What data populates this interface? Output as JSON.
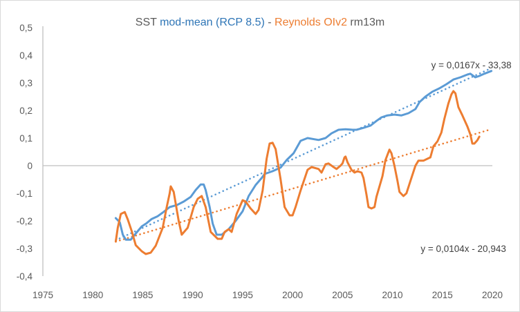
{
  "chart_data": {
    "type": "line",
    "title": {
      "segments": [
        {
          "text": "SST ",
          "color": "#595959"
        },
        {
          "text": "mod-mean (RCP 8.5)",
          "color": "#2E75B6"
        },
        {
          "text": " - ",
          "color": "#595959"
        },
        {
          "text": "Reynolds OIv2",
          "color": "#ED7D31"
        },
        {
          "text": " rm13m",
          "color": "#595959"
        }
      ]
    },
    "xlabel": "",
    "ylabel": "",
    "xlim": [
      1975,
      2020
    ],
    "ylim": [
      -0.4,
      0.5
    ],
    "x_ticks": [
      1975,
      1980,
      1985,
      1990,
      1995,
      2000,
      2005,
      2010,
      2015,
      2020
    ],
    "x_tick_labels": [
      "1975",
      "1980",
      "1985",
      "1990",
      "1995",
      "2000",
      "2005",
      "2010",
      "2015",
      "2020"
    ],
    "y_ticks": [
      0.5,
      0.4,
      0.3,
      0.2,
      0.1,
      0,
      -0.1,
      -0.2,
      -0.3,
      -0.4
    ],
    "y_tick_labels": [
      "0,5",
      "0,4",
      "0,3",
      "0,2",
      "0,1",
      "0",
      "-0,1",
      "-0,2",
      "-0,3",
      "-0,4"
    ],
    "grid": false,
    "legend": "none",
    "series": [
      {
        "name": "SST mod-mean (RCP 8.5)",
        "color": "#5B9BD5",
        "points": [
          [
            1982.3,
            -0.19
          ],
          [
            1982.7,
            -0.205
          ],
          [
            1983.0,
            -0.25
          ],
          [
            1983.3,
            -0.268
          ],
          [
            1983.8,
            -0.268
          ],
          [
            1984.2,
            -0.25
          ],
          [
            1984.9,
            -0.22
          ],
          [
            1985.4,
            -0.208
          ],
          [
            1985.9,
            -0.193
          ],
          [
            1986.5,
            -0.183
          ],
          [
            1987.0,
            -0.17
          ],
          [
            1987.7,
            -0.15
          ],
          [
            1988.4,
            -0.143
          ],
          [
            1989.1,
            -0.13
          ],
          [
            1989.8,
            -0.113
          ],
          [
            1990.3,
            -0.088
          ],
          [
            1990.8,
            -0.068
          ],
          [
            1991.1,
            -0.068
          ],
          [
            1991.3,
            -0.088
          ],
          [
            1991.7,
            -0.15
          ],
          [
            1992.0,
            -0.21
          ],
          [
            1992.4,
            -0.25
          ],
          [
            1992.9,
            -0.25
          ],
          [
            1993.6,
            -0.23
          ],
          [
            1994.3,
            -0.2
          ],
          [
            1995.0,
            -0.165
          ],
          [
            1995.6,
            -0.11
          ],
          [
            1996.3,
            -0.07
          ],
          [
            1996.9,
            -0.045
          ],
          [
            1997.2,
            -0.03
          ],
          [
            1998.0,
            -0.02
          ],
          [
            1998.8,
            -0.007
          ],
          [
            1999.4,
            0.02
          ],
          [
            2000.1,
            0.045
          ],
          [
            2000.8,
            0.09
          ],
          [
            2001.5,
            0.1
          ],
          [
            2002.6,
            0.093
          ],
          [
            2003.3,
            0.1
          ],
          [
            2003.9,
            0.117
          ],
          [
            2004.6,
            0.13
          ],
          [
            2005.3,
            0.132
          ],
          [
            2006.0,
            0.13
          ],
          [
            2006.4,
            0.13
          ],
          [
            2007.1,
            0.137
          ],
          [
            2007.8,
            0.145
          ],
          [
            2008.4,
            0.162
          ],
          [
            2008.9,
            0.175
          ],
          [
            2009.5,
            0.182
          ],
          [
            2010.2,
            0.185
          ],
          [
            2010.9,
            0.182
          ],
          [
            2011.6,
            0.19
          ],
          [
            2012.3,
            0.205
          ],
          [
            2012.7,
            0.23
          ],
          [
            2013.3,
            0.25
          ],
          [
            2014.0,
            0.268
          ],
          [
            2014.7,
            0.28
          ],
          [
            2015.4,
            0.295
          ],
          [
            2016.1,
            0.312
          ],
          [
            2016.8,
            0.32
          ],
          [
            2017.5,
            0.33
          ],
          [
            2017.8,
            0.333
          ],
          [
            2018.3,
            0.32
          ],
          [
            2018.7,
            0.325
          ],
          [
            2019.2,
            0.333
          ],
          [
            2019.9,
            0.343
          ]
        ],
        "trendline": {
          "equation": "y = 0,0167x - 33,38",
          "from": [
            1982.3,
            -0.27
          ],
          "to": [
            2019.7,
            0.35
          ]
        }
      },
      {
        "name": "Reynolds OIv2 rm13m",
        "color": "#ED7D31",
        "points": [
          [
            1982.3,
            -0.275
          ],
          [
            1982.5,
            -0.225
          ],
          [
            1982.8,
            -0.175
          ],
          [
            1983.2,
            -0.168
          ],
          [
            1983.5,
            -0.195
          ],
          [
            1983.9,
            -0.238
          ],
          [
            1984.3,
            -0.288
          ],
          [
            1984.9,
            -0.31
          ],
          [
            1985.3,
            -0.32
          ],
          [
            1985.8,
            -0.315
          ],
          [
            1986.3,
            -0.29
          ],
          [
            1987.0,
            -0.225
          ],
          [
            1987.4,
            -0.15
          ],
          [
            1987.7,
            -0.1
          ],
          [
            1987.8,
            -0.075
          ],
          [
            1988.1,
            -0.095
          ],
          [
            1988.6,
            -0.2
          ],
          [
            1988.9,
            -0.25
          ],
          [
            1989.5,
            -0.225
          ],
          [
            1990.1,
            -0.15
          ],
          [
            1990.5,
            -0.12
          ],
          [
            1990.9,
            -0.11
          ],
          [
            1991.3,
            -0.15
          ],
          [
            1991.8,
            -0.24
          ],
          [
            1992.5,
            -0.265
          ],
          [
            1992.9,
            -0.265
          ],
          [
            1993.2,
            -0.24
          ],
          [
            1993.6,
            -0.23
          ],
          [
            1993.9,
            -0.24
          ],
          [
            1994.4,
            -0.175
          ],
          [
            1995.0,
            -0.125
          ],
          [
            1995.3,
            -0.13
          ],
          [
            1995.8,
            -0.155
          ],
          [
            1996.3,
            -0.175
          ],
          [
            1996.6,
            -0.16
          ],
          [
            1997.0,
            -0.09
          ],
          [
            1997.4,
            0.025
          ],
          [
            1997.7,
            0.08
          ],
          [
            1998.0,
            0.083
          ],
          [
            1998.3,
            0.06
          ],
          [
            1998.8,
            -0.05
          ],
          [
            1999.2,
            -0.15
          ],
          [
            1999.7,
            -0.18
          ],
          [
            2000.0,
            -0.18
          ],
          [
            2000.3,
            -0.15
          ],
          [
            2000.8,
            -0.09
          ],
          [
            2001.5,
            -0.015
          ],
          [
            2001.9,
            -0.005
          ],
          [
            2002.6,
            -0.012
          ],
          [
            2002.9,
            -0.025
          ],
          [
            2003.3,
            0.005
          ],
          [
            2003.6,
            0.008
          ],
          [
            2004.1,
            -0.005
          ],
          [
            2004.4,
            -0.012
          ],
          [
            2004.8,
            0.0
          ],
          [
            2005.0,
            0.008
          ],
          [
            2005.2,
            0.03
          ],
          [
            2005.3,
            0.033
          ],
          [
            2005.5,
            0.012
          ],
          [
            2005.9,
            -0.015
          ],
          [
            2006.2,
            -0.025
          ],
          [
            2006.5,
            -0.02
          ],
          [
            2006.9,
            -0.025
          ],
          [
            2007.1,
            -0.045
          ],
          [
            2007.4,
            -0.105
          ],
          [
            2007.6,
            -0.15
          ],
          [
            2007.9,
            -0.155
          ],
          [
            2008.2,
            -0.15
          ],
          [
            2008.4,
            -0.113
          ],
          [
            2009.0,
            -0.038
          ],
          [
            2009.3,
            0.02
          ],
          [
            2009.7,
            0.058
          ],
          [
            2009.9,
            0.045
          ],
          [
            2010.2,
            0.0
          ],
          [
            2010.5,
            -0.055
          ],
          [
            2010.7,
            -0.095
          ],
          [
            2011.1,
            -0.11
          ],
          [
            2011.4,
            -0.1
          ],
          [
            2011.8,
            -0.055
          ],
          [
            2012.3,
            0.0
          ],
          [
            2012.6,
            0.018
          ],
          [
            2013.1,
            0.018
          ],
          [
            2013.5,
            0.025
          ],
          [
            2013.8,
            0.03
          ],
          [
            2014.1,
            0.07
          ],
          [
            2014.5,
            0.088
          ],
          [
            2014.9,
            0.12
          ],
          [
            2015.2,
            0.17
          ],
          [
            2015.6,
            0.225
          ],
          [
            2015.9,
            0.258
          ],
          [
            2016.1,
            0.27
          ],
          [
            2016.3,
            0.262
          ],
          [
            2016.6,
            0.212
          ],
          [
            2017.0,
            0.182
          ],
          [
            2017.5,
            0.142
          ],
          [
            2017.8,
            0.113
          ],
          [
            2018.0,
            0.08
          ],
          [
            2018.2,
            0.08
          ],
          [
            2018.5,
            0.092
          ],
          [
            2018.7,
            0.105
          ]
        ],
        "trendline": {
          "equation": "y = 0,0104x - 20,943",
          "from": [
            1982.3,
            -0.275
          ],
          "to": [
            2019.7,
            0.13
          ]
        }
      }
    ],
    "annotations": [
      {
        "text": "y = 0,0167x - 33,38",
        "series": "SST mod-mean (RCP 8.5)",
        "anchor": [
          2017.9,
          0.365
        ]
      },
      {
        "text": "y = 0,0104x - 20,943",
        "series": "Reynolds OIv2 rm13m",
        "anchor": [
          2017.1,
          -0.3
        ]
      }
    ]
  }
}
